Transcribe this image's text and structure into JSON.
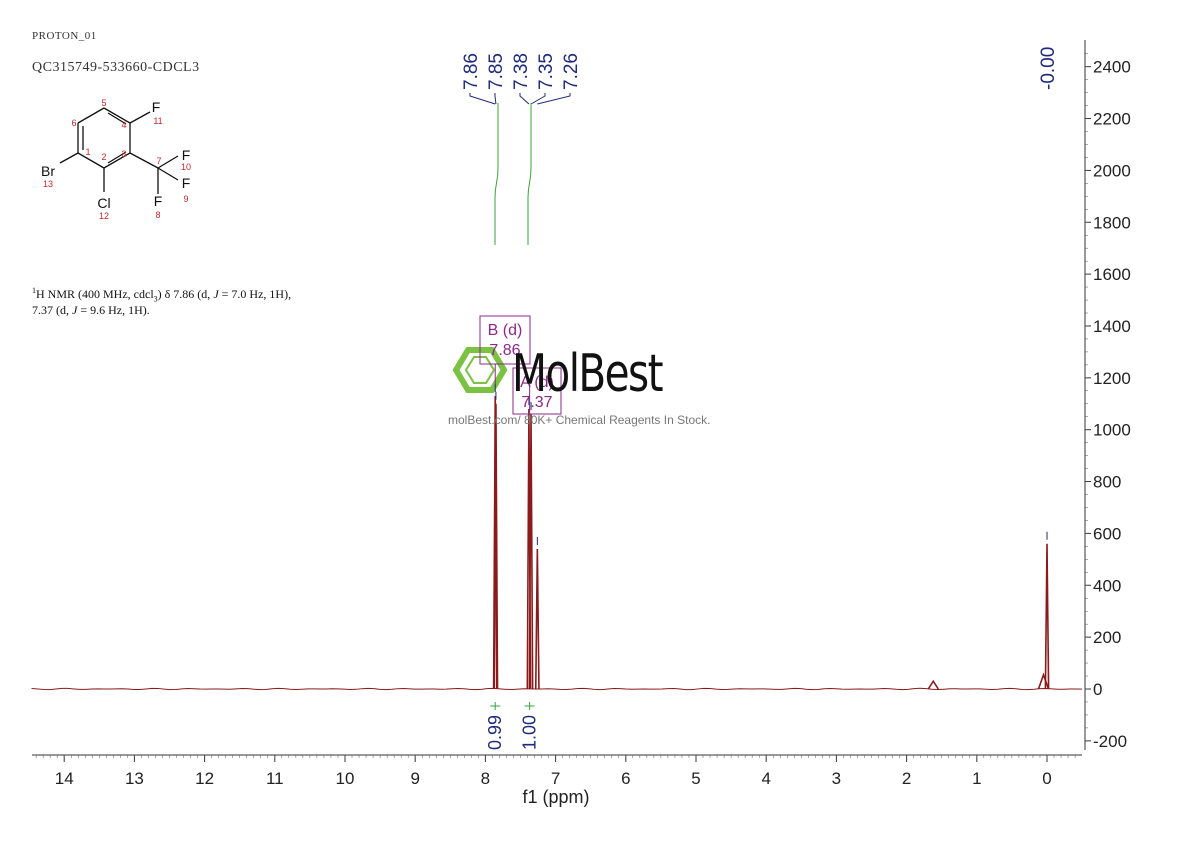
{
  "header": {
    "experiment": "PROTON_01",
    "sample": "QC315749-533660-CDCL3"
  },
  "nmr_description": {
    "line1_prefix": "1",
    "line1": "H NMR (400 MHz, cdcl",
    "line1_sub": "3",
    "line1_rest": ") δ 7.86 (d, ",
    "j_symbol": "J",
    "line1_end": " = 7.0 Hz, 1H),",
    "line2_start": "7.37 (d, ",
    "line2_end": " = 9.6 Hz, 1H)."
  },
  "structure": {
    "atoms": [
      {
        "id": "1",
        "label": "Br",
        "num": "13"
      },
      {
        "id": "2",
        "label": "Cl",
        "num": "12"
      },
      {
        "id": "3",
        "label": "F",
        "num": "11"
      },
      {
        "id": "4",
        "label": "F",
        "num": "10"
      },
      {
        "id": "5",
        "label": "F",
        "num": "9"
      },
      {
        "id": "6",
        "label": "F",
        "num": "8"
      }
    ],
    "ring_numbers": [
      "1",
      "2",
      "3",
      "4",
      "5",
      "6",
      "7"
    ]
  },
  "watermark": {
    "brand": "MolBest",
    "tagline": "molBest.com/ 80K+ Chemical Reagents In Stock."
  },
  "chart_data": {
    "type": "line",
    "xlabel": "f1 (ppm)",
    "xlim": [
      14.5,
      -0.5
    ],
    "x_reversed": true,
    "x_ticks": [
      14,
      13,
      12,
      11,
      10,
      9,
      8,
      7,
      6,
      5,
      4,
      3,
      2,
      1,
      0
    ],
    "ylim": [
      -200,
      2500
    ],
    "y_ticks": [
      -200,
      0,
      200,
      400,
      600,
      800,
      1000,
      1200,
      1400,
      1600,
      1800,
      2000,
      2200,
      2400
    ],
    "y_axis_side": "right",
    "peaks": [
      {
        "ppm": 7.86,
        "height": 1130
      },
      {
        "ppm": 7.85,
        "height": 1100
      },
      {
        "ppm": 7.38,
        "height": 1080
      },
      {
        "ppm": 7.35,
        "height": 1060
      },
      {
        "ppm": 7.26,
        "height": 540
      },
      {
        "ppm": 1.62,
        "height": 30
      },
      {
        "ppm": 0.05,
        "height": 55
      },
      {
        "ppm": 0.0,
        "height": 560
      }
    ],
    "peak_labels": [
      "7.86",
      "7.85",
      "7.38",
      "7.35",
      "7.26",
      "0.00"
    ],
    "zero_label": "-0.00",
    "multiplets": [
      {
        "name": "B (d)",
        "shift": "7.86",
        "ppm": 7.86
      },
      {
        "name": "A (d)",
        "shift": "7.37",
        "ppm": 7.37
      }
    ],
    "integrals": [
      {
        "ppm": 7.86,
        "value": "0.99"
      },
      {
        "ppm": 7.37,
        "value": "1.00"
      }
    ],
    "colors": {
      "spectrum": "#8b1a1a",
      "labels": "#1f2a7a",
      "integral": "#3aa23a",
      "multiplet": "#8a2a8a"
    }
  }
}
